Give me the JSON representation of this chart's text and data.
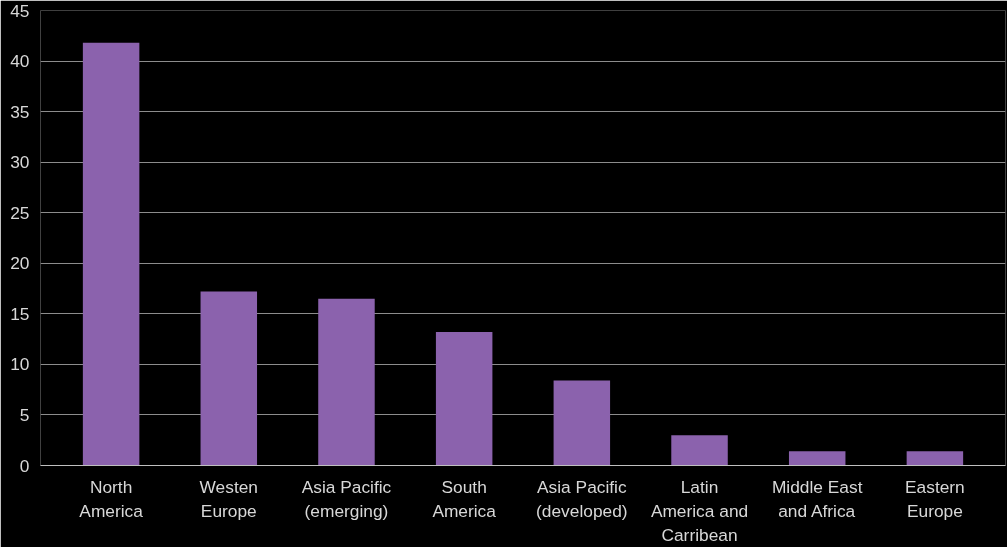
{
  "chart_data": {
    "type": "bar",
    "categories": [
      "North America",
      "Westen Europe",
      "Asia Pacific (emerging)",
      "South America",
      "Asia Pacific (developed)",
      "Latin America and Carribean",
      "Middle East and Africa",
      "Eastern Europe"
    ],
    "values": [
      41.8,
      17.2,
      16.5,
      13.2,
      8.4,
      3.0,
      1.4,
      1.4
    ],
    "color": "#8b62ad",
    "ylim": [
      0,
      45
    ],
    "yticks": [
      0,
      5,
      10,
      15,
      20,
      25,
      30,
      35,
      40,
      45
    ],
    "grid": "y"
  }
}
